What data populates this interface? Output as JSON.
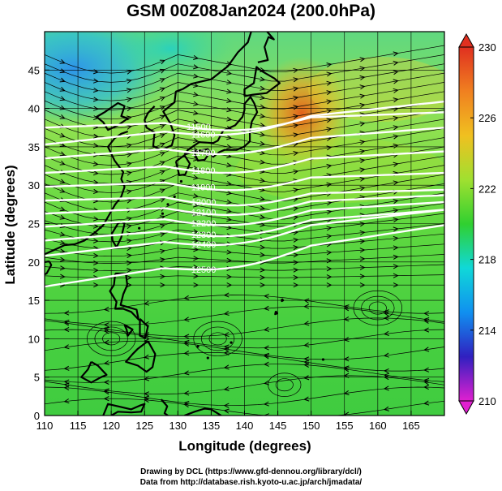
{
  "title": "GSM 00Z08Jan2024 (200.0hPa)",
  "map": {
    "xlabel": "Longitude (degrees)",
    "ylabel": "Latitude  (degrees)",
    "x_ticks": [
      110,
      115,
      120,
      125,
      130,
      135,
      140,
      145,
      150,
      155,
      160,
      165
    ],
    "y_ticks": [
      0,
      5,
      10,
      15,
      20,
      25,
      30,
      35,
      40,
      45
    ],
    "xlim": [
      110,
      170
    ],
    "ylim": [
      0,
      50
    ],
    "grid": true
  },
  "colorbar": {
    "ticks": [
      210,
      214,
      218,
      222,
      226,
      230
    ],
    "range": [
      210,
      230
    ],
    "colors": [
      "#e020d0",
      "#3020c0",
      "#1090f0",
      "#10d8d8",
      "#30d030",
      "#a0e030",
      "#f0c020",
      "#f08020",
      "#e03020"
    ]
  },
  "contours": [
    {
      "label": "11500",
      "lon": 131.3
    },
    {
      "label": "11600",
      "lon": 132.0
    },
    {
      "label": "11700",
      "lon": 132.0
    },
    {
      "label": "11800",
      "lon": 132.0
    },
    {
      "label": "11900",
      "lon": 132.0
    },
    {
      "label": "12000",
      "lon": 132.0
    },
    {
      "label": "12100",
      "lon": 132.0
    },
    {
      "label": "12200",
      "lon": 132.0
    },
    {
      "label": "12300",
      "lon": 132.0
    },
    {
      "label": "12400",
      "lon": 132.0
    },
    {
      "label": "12500",
      "lon": 132.0
    }
  ],
  "credits": {
    "line1": "Drawing by DCL (https://www.gfd-dennou.org/library/dcl/)",
    "line2": "Data from http://database.rish.kyoto-u.ac.jp/arch/jmadata/"
  }
}
